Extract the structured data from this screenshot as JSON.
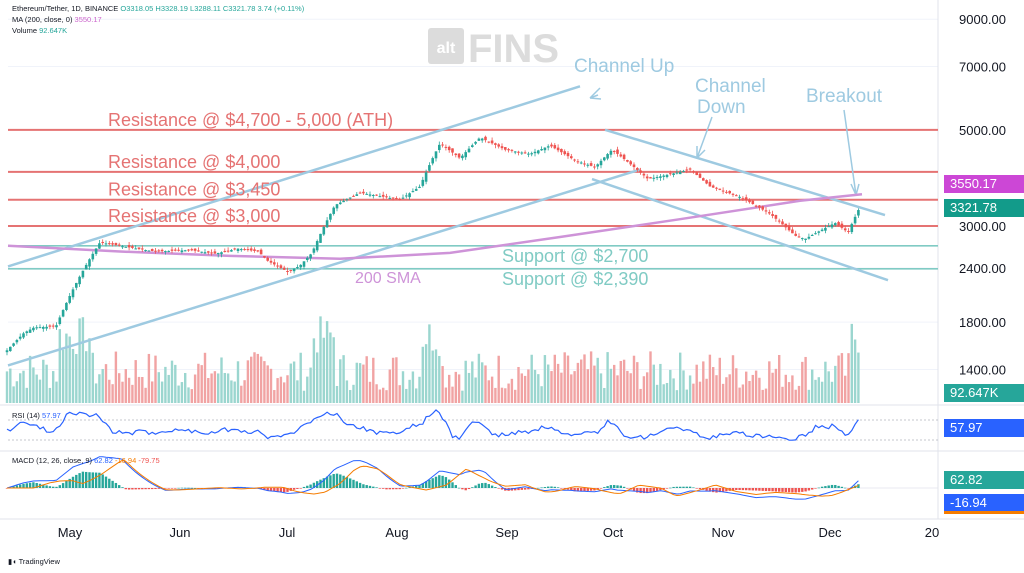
{
  "header": {
    "symbol_line": "Ethereum/Tether, 1D, BINANCE",
    "ohlc": "O3318.05  H3328.19  L3288.11  C3321.78  3.74 (+0.11%)",
    "ma_label": "MA (200, close, 0)",
    "ma_value": "3550.17",
    "volume_label": "Volume",
    "volume_value": "92.647K"
  },
  "rsi": {
    "label": "RSI (14)",
    "value": "57.97"
  },
  "macd": {
    "label": "MACD (12, 26, close, 9)",
    "v1": "62.82",
    "v2": "-16.94",
    "v3": "-79.75"
  },
  "badges": {
    "ma": "3550.17",
    "price": "3321.78",
    "volume": "92.647K",
    "rsi": "57.97",
    "macd1": "62.82",
    "macd2": "-16.94"
  },
  "watermark": {
    "prefix": "alt",
    "name": "FINS"
  },
  "footer": {
    "brand": "TradingView"
  },
  "colors": {
    "up": "#26a69a",
    "down": "#ef5350",
    "resistance": "#e57373",
    "support": "#80cbc4",
    "channel": "#9ecae1",
    "sma": "#ce93d8",
    "rsi": "#2962ff",
    "macd": "#2962ff",
    "signal": "#f57c00"
  },
  "chart_data": {
    "type": "candlestick",
    "symbol": "ETH/USDT",
    "interval": "1D",
    "y_axis_ticks": [
      9000,
      7000,
      5000,
      3000,
      2400,
      1800,
      1400
    ],
    "y_axis_labels": [
      "9000.00",
      "7000.00",
      "5000.00",
      "3000.00",
      "2400.00",
      "1800.00",
      "1400.00"
    ],
    "x_axis_labels": [
      "May",
      "Jun",
      "Jul",
      "Aug",
      "Sep",
      "Oct",
      "Nov",
      "Dec",
      "20"
    ],
    "price_path": [
      [
        "Apr",
        1550
      ],
      [
        "Apr",
        1620
      ],
      [
        "Apr",
        1700
      ],
      [
        "May",
        1750
      ],
      [
        "May",
        1760
      ],
      [
        "May",
        2750
      ],
      [
        "May",
        2680
      ],
      [
        "May",
        2620
      ],
      [
        "Jun",
        2640
      ],
      [
        "Jun",
        2590
      ],
      [
        "Jun",
        2660
      ],
      [
        "Jun",
        2620
      ],
      [
        "Jun",
        2490
      ],
      [
        "Jul",
        2350
      ],
      [
        "Jul",
        2430
      ],
      [
        "Jul",
        2600
      ],
      [
        "Jul",
        3350
      ],
      [
        "Jul",
        3580
      ],
      [
        "Aug",
        3450
      ],
      [
        "Aug",
        3700
      ],
      [
        "Aug",
        4650
      ],
      [
        "Aug",
        4300
      ],
      [
        "Aug",
        4800
      ],
      [
        "Sep",
        4500
      ],
      [
        "Sep",
        4400
      ],
      [
        "Sep",
        4600
      ],
      [
        "Sep",
        4250
      ],
      [
        "Sep",
        4100
      ],
      [
        "Oct",
        4500
      ],
      [
        "Oct",
        3850
      ],
      [
        "Oct",
        3950
      ],
      [
        "Oct",
        4050
      ],
      [
        "Oct",
        3700
      ],
      [
        "Nov",
        3500
      ],
      [
        "Nov",
        3200
      ],
      [
        "Nov",
        2850
      ],
      [
        "Nov",
        2800
      ],
      [
        "Dec",
        3050
      ],
      [
        "Dec",
        2900
      ],
      [
        "Dec",
        3321.78
      ]
    ],
    "levels": [
      {
        "label": "Resistance @ $4,700 - 5,000 (ATH)",
        "value": 5000,
        "kind": "resistance"
      },
      {
        "label": "Resistance @ $4,000",
        "value": 4000,
        "kind": "resistance"
      },
      {
        "label": "Resistance @ $3,450",
        "value": 3450,
        "kind": "resistance"
      },
      {
        "label": "Resistance @ $3,000",
        "value": 3000,
        "kind": "resistance"
      },
      {
        "label": "Support @ $2,700",
        "value": 2700,
        "kind": "support"
      },
      {
        "label": "Support @ $2,390",
        "value": 2390,
        "kind": "support"
      }
    ],
    "annotations": {
      "channel_up": "Channel Up",
      "channel_down_1": "Channel",
      "channel_down_2": "Down",
      "breakout": "Breakout",
      "sma": "200 SMA"
    },
    "sma_200": [
      [
        "May",
        2640
      ],
      [
        "Jun",
        2560
      ],
      [
        "Jul",
        2520
      ],
      [
        "Aug",
        2580
      ],
      [
        "Sep",
        2780
      ],
      [
        "Oct",
        3050
      ],
      [
        "Nov",
        3350
      ],
      [
        "Dec",
        3550.17
      ]
    ],
    "last_close": 3321.78,
    "ma_200_last": 3550.17,
    "volume_last": "92.647K",
    "rsi_last": 57.97,
    "macd_last": {
      "macd": 62.82,
      "histogram": -16.94,
      "signal": -79.75
    }
  }
}
